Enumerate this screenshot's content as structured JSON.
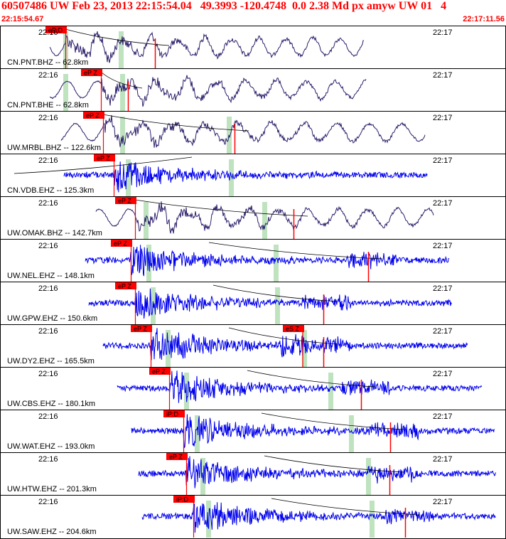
{
  "header": {
    "title": "60507486 UW Feb 23, 2013 22:15:54.04   49.3993 -120.4748  0.0 2.38 Md px amyw UW 01   4",
    "start_time": "22:15:54.67",
    "end_time": "22:17:11.56"
  },
  "colors": {
    "header_text": "#ff0000",
    "pick": "#ff0000",
    "long_period": "#2b1f6b",
    "short_period": "#0000ee",
    "window": "#bfe3bf"
  },
  "chart_data": {
    "type": "line",
    "tick_left": "22:16",
    "tick_right": "22:17",
    "traces": [
      {
        "label": "CN.PNT.BHZ -- 62.8km",
        "picks": [
          "eP:D"
        ],
        "kind": "lp"
      },
      {
        "label": "CN.PNT.BHE -- 62.8km",
        "picks": [
          "eP Z"
        ],
        "kind": "lp"
      },
      {
        "label": "UW.MRBL.BHZ -- 122.6km",
        "picks": [
          "eP Z"
        ],
        "kind": "lp"
      },
      {
        "label": "CN.VDB.EHZ -- 125.3km",
        "picks": [
          "eP Z"
        ],
        "kind": "sp"
      },
      {
        "label": "UW.OMAK.BHZ -- 142.7km",
        "picks": [
          "eP Z"
        ],
        "kind": "lp"
      },
      {
        "label": "UW.NEL.EHZ -- 148.1km",
        "picks": [
          "eP Z"
        ],
        "kind": "sp"
      },
      {
        "label": "UW.GPW.EHZ -- 150.6km",
        "picks": [
          "eP Z"
        ],
        "kind": "sp"
      },
      {
        "label": "UW.DY2.EHZ -- 165.5km",
        "picks": [
          "eP Z",
          "eS Z"
        ],
        "kind": "sp"
      },
      {
        "label": "UW.CBS.EHZ -- 180.1km",
        "picks": [
          "eP Z"
        ],
        "kind": "sp"
      },
      {
        "label": "UW.WAT.EHZ -- 193.0km",
        "picks": [
          "iP:D"
        ],
        "kind": "sp"
      },
      {
        "label": "UW.HTW.EHZ -- 201.3km",
        "picks": [
          "eP Z"
        ],
        "kind": "sp"
      },
      {
        "label": "UW.SAW.EHZ -- 204.6km",
        "picks": [
          "iP:D"
        ],
        "kind": "sp"
      }
    ]
  }
}
